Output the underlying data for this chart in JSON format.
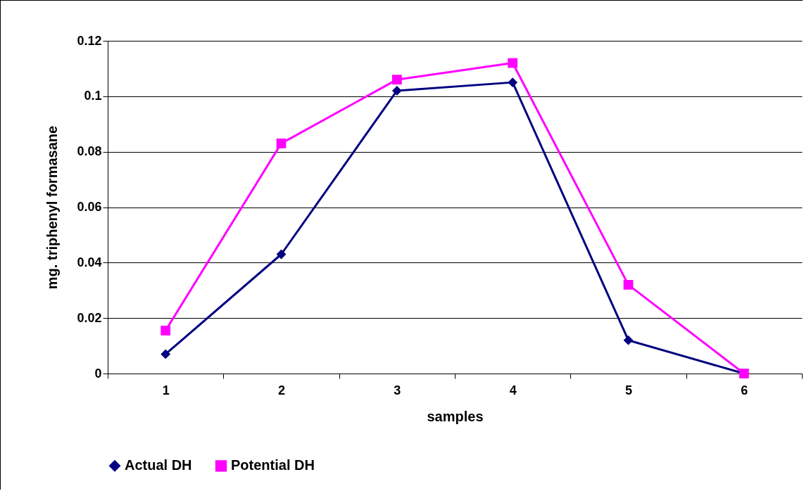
{
  "chart_data": {
    "type": "line",
    "xlabel": "samples",
    "ylabel": "mg. triphenyl formasane",
    "categories": [
      "1",
      "2",
      "3",
      "4",
      "5",
      "6"
    ],
    "series": [
      {
        "name": "Actual DH",
        "color": "#000080",
        "marker": "diamond",
        "values": [
          0.007,
          0.043,
          0.102,
          0.105,
          0.012,
          0
        ]
      },
      {
        "name": "Potential DH",
        "color": "#ff00ff",
        "marker": "square",
        "values": [
          0.0155,
          0.083,
          0.106,
          0.112,
          0.032,
          0
        ]
      }
    ],
    "ylim": [
      0,
      0.12
    ],
    "yticks": [
      0,
      0.02,
      0.04,
      0.06,
      0.08,
      0.1,
      0.12
    ],
    "grid": "y",
    "legend": "bottom"
  }
}
